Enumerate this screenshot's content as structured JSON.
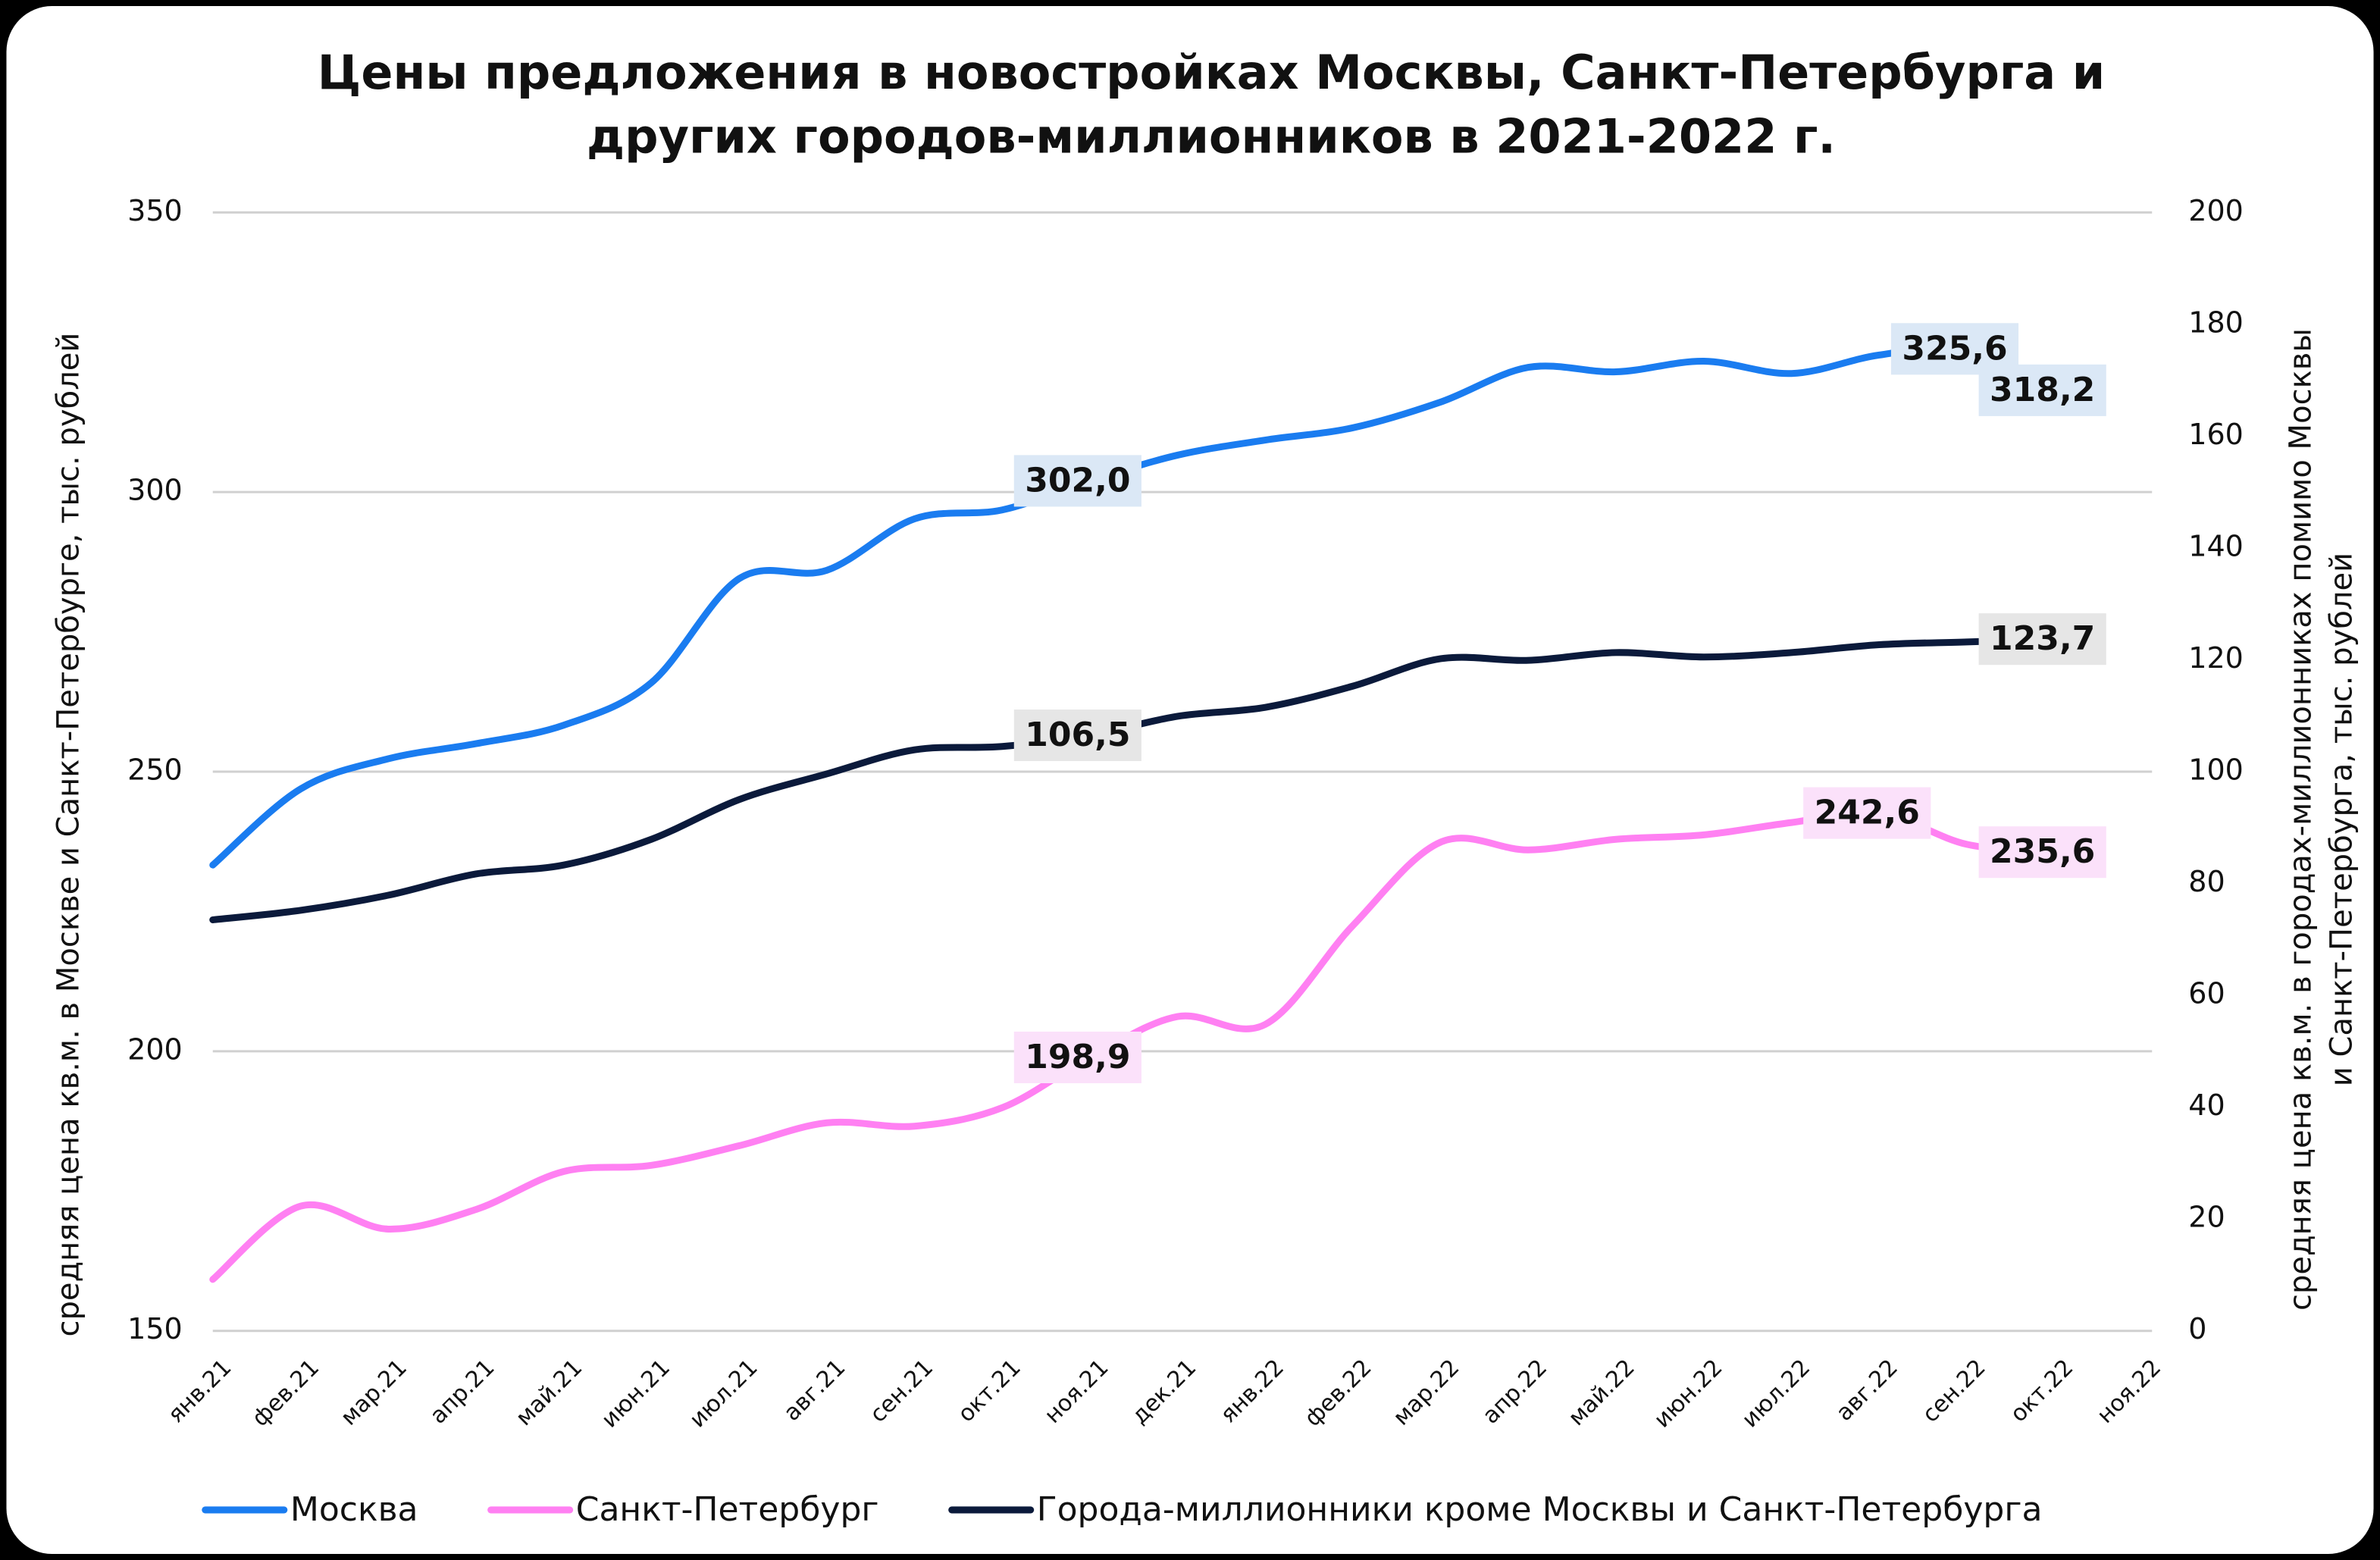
{
  "chart_data": {
    "type": "line",
    "title": [
      "Цены предложения в новостройках Москвы, Санкт-Петербурга и",
      "других городов-миллионников в 2021-2022 г."
    ],
    "y_label": "средняя цена кв.м. в Москве и Санкт-Петербурге, тыс. рублей",
    "y2_label": [
      "средняя цена кв.м. в городах-миллионниках помимо Москвы",
      "и Санкт-Петербурга, тыс. рублей"
    ],
    "categories": [
      "янв.21",
      "фев.21",
      "мар.21",
      "апр.21",
      "май.21",
      "июн.21",
      "июл.21",
      "авг.21",
      "сен.21",
      "окт.21",
      "ноя.21",
      "дек.21",
      "янв.22",
      "фев.22",
      "мар.22",
      "апр.22",
      "май.22",
      "июн.22",
      "июл.22",
      "авг.22",
      "сен.22",
      "окт.22",
      "ноя.22"
    ],
    "series": [
      {
        "name": "Москва",
        "color": "#1a7cf0",
        "label_bg": "#dbe8f6",
        "values": [
          233.3,
          246.9,
          252.3,
          255,
          258.3,
          265.9,
          284.5,
          286,
          295.2,
          296.8,
          302.0,
          306.6,
          309.3,
          311.5,
          316.1,
          322.3,
          321.5,
          323.4,
          321.2,
          324.5,
          325.6,
          318.2,
          null
        ],
        "value_labels": [
          null,
          null,
          null,
          null,
          null,
          null,
          null,
          null,
          null,
          null,
          "302,0",
          null,
          null,
          null,
          null,
          null,
          null,
          null,
          null,
          null,
          "325,6",
          "318,2",
          null
        ]
      },
      {
        "name": "Санкт-Петербург",
        "color": "#ff80f2",
        "label_bg": "#fbe1fa",
        "values": [
          159.2,
          172.3,
          168.2,
          171.7,
          178.5,
          179.6,
          183.1,
          187.2,
          186.6,
          189.9,
          198.9,
          206.2,
          204.8,
          222.5,
          237.4,
          236.0,
          237.9,
          238.7,
          240.9,
          242.6,
          237.0,
          235.6,
          null
        ],
        "value_labels": [
          null,
          null,
          null,
          null,
          null,
          null,
          null,
          null,
          null,
          null,
          "198,9",
          null,
          null,
          null,
          null,
          null,
          null,
          null,
          null,
          "242,6",
          null,
          "235,6",
          null
        ]
      },
      {
        "name": "Города-миллионники кроме Москвы и Санкт-Петербурга",
        "color": "#0b1a3b",
        "label_bg": "#e6e6e6",
        "axis": "y2",
        "values": [
          73.5,
          75.2,
          77.9,
          81.7,
          83.3,
          87.9,
          95.0,
          99.6,
          103.9,
          104.5,
          106.5,
          109.9,
          111.5,
          115.3,
          120.2,
          119.9,
          121.3,
          120.5,
          121.3,
          122.7,
          123.2,
          123.7,
          null
        ],
        "value_labels": [
          null,
          null,
          null,
          null,
          null,
          null,
          null,
          null,
          null,
          null,
          "106,5",
          null,
          null,
          null,
          null,
          null,
          null,
          null,
          null,
          null,
          null,
          "123,7",
          null
        ]
      }
    ],
    "ylim": [
      150,
      350
    ],
    "yticks": [
      150,
      200,
      250,
      300,
      350
    ],
    "y2lim": [
      0,
      200
    ],
    "y2ticks": [
      0,
      20,
      40,
      60,
      80,
      100,
      120,
      140,
      160,
      180,
      200
    ],
    "grid": true,
    "legend": "bottom"
  }
}
